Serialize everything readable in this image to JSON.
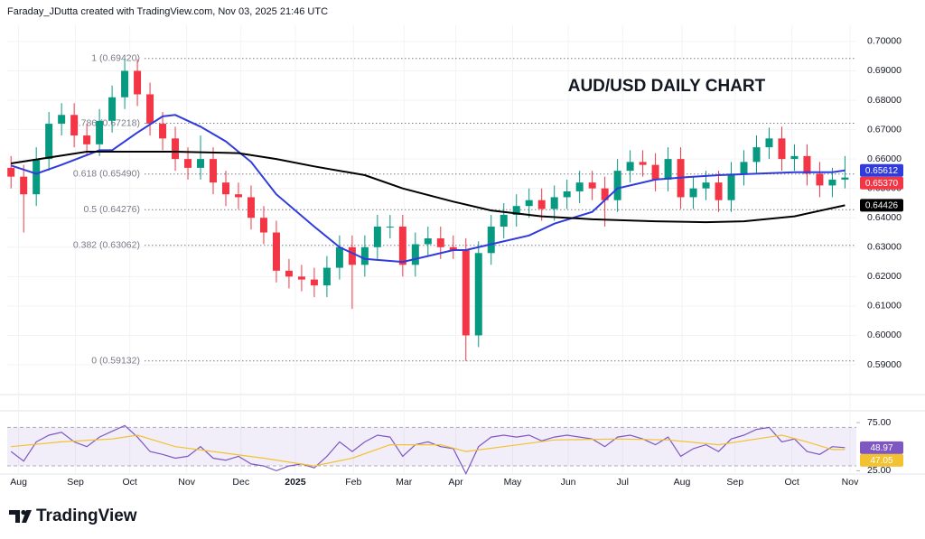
{
  "header": "Faraday_JDutta created with TradingView.com, Nov 03, 2025 21:46 UTC",
  "logo": "TradingView",
  "chart_data": [
    {
      "type": "candlestick",
      "title": "AUD/USD DAILY CHART",
      "x": [
        0,
        1,
        2,
        3,
        4,
        5,
        6,
        7,
        8,
        9,
        10,
        11,
        12,
        13,
        14,
        15,
        16,
        17,
        18,
        19,
        20,
        21,
        22,
        23,
        24,
        25,
        26,
        27,
        28,
        29,
        30,
        31,
        32,
        33,
        34,
        35,
        36,
        37,
        38,
        39,
        40,
        41,
        42,
        43,
        44,
        45,
        46,
        47,
        48,
        49,
        50,
        51,
        52,
        53,
        54,
        55,
        56,
        57,
        58,
        59,
        60,
        61,
        62,
        63,
        64,
        65,
        66
      ],
      "open": [
        0.657,
        0.654,
        0.648,
        0.66,
        0.672,
        0.675,
        0.668,
        0.665,
        0.673,
        0.681,
        0.69,
        0.682,
        0.672,
        0.667,
        0.66,
        0.657,
        0.66,
        0.652,
        0.648,
        0.647,
        0.64,
        0.635,
        0.622,
        0.62,
        0.619,
        0.617,
        0.623,
        0.63,
        0.624,
        0.63,
        0.637,
        0.637,
        0.624,
        0.631,
        0.633,
        0.63,
        0.629,
        0.6,
        0.628,
        0.637,
        0.641,
        0.644,
        0.646,
        0.643,
        0.647,
        0.649,
        0.652,
        0.65,
        0.646,
        0.656,
        0.659,
        0.658,
        0.653,
        0.66,
        0.647,
        0.65,
        0.652,
        0.646,
        0.655,
        0.659,
        0.664,
        0.667,
        0.66,
        0.661,
        0.655,
        0.651,
        0.653
      ],
      "high": [
        0.661,
        0.658,
        0.664,
        0.676,
        0.679,
        0.679,
        0.672,
        0.677,
        0.685,
        0.6942,
        0.694,
        0.686,
        0.676,
        0.671,
        0.664,
        0.668,
        0.664,
        0.656,
        0.652,
        0.651,
        0.644,
        0.639,
        0.626,
        0.624,
        0.623,
        0.627,
        0.634,
        0.634,
        0.634,
        0.641,
        0.641,
        0.641,
        0.635,
        0.637,
        0.637,
        0.634,
        0.633,
        0.632,
        0.641,
        0.645,
        0.648,
        0.65,
        0.65,
        0.651,
        0.653,
        0.656,
        0.656,
        0.654,
        0.66,
        0.663,
        0.663,
        0.662,
        0.664,
        0.664,
        0.654,
        0.656,
        0.656,
        0.659,
        0.663,
        0.668,
        0.6707,
        0.671,
        0.665,
        0.665,
        0.659,
        0.657,
        0.661
      ],
      "low": [
        0.65,
        0.635,
        0.644,
        0.656,
        0.668,
        0.664,
        0.661,
        0.661,
        0.669,
        0.677,
        0.678,
        0.668,
        0.663,
        0.656,
        0.653,
        0.653,
        0.648,
        0.644,
        0.643,
        0.636,
        0.631,
        0.618,
        0.616,
        0.615,
        0.613,
        0.613,
        0.619,
        0.609,
        0.62,
        0.626,
        0.633,
        0.62,
        0.62,
        0.627,
        0.626,
        0.626,
        0.5913,
        0.596,
        0.624,
        0.633,
        0.637,
        0.64,
        0.639,
        0.639,
        0.643,
        0.645,
        0.646,
        0.637,
        0.642,
        0.652,
        0.654,
        0.649,
        0.649,
        0.643,
        0.643,
        0.646,
        0.642,
        0.642,
        0.651,
        0.655,
        0.66,
        0.656,
        0.656,
        0.651,
        0.647,
        0.647,
        0.65
      ],
      "close": [
        0.654,
        0.648,
        0.66,
        0.672,
        0.675,
        0.668,
        0.665,
        0.673,
        0.681,
        0.69,
        0.682,
        0.672,
        0.667,
        0.66,
        0.657,
        0.66,
        0.652,
        0.648,
        0.647,
        0.64,
        0.635,
        0.622,
        0.62,
        0.619,
        0.617,
        0.623,
        0.63,
        0.624,
        0.63,
        0.637,
        0.637,
        0.624,
        0.631,
        0.633,
        0.63,
        0.629,
        0.6,
        0.628,
        0.637,
        0.641,
        0.644,
        0.646,
        0.643,
        0.647,
        0.649,
        0.652,
        0.65,
        0.646,
        0.656,
        0.659,
        0.658,
        0.653,
        0.66,
        0.647,
        0.65,
        0.652,
        0.646,
        0.655,
        0.659,
        0.664,
        0.667,
        0.66,
        0.661,
        0.655,
        0.651,
        0.653,
        0.6537
      ],
      "up_color": "#089981",
      "down_color": "#f23645",
      "series": [
        {
          "color": "#2f3bdd",
          "x": [
            0,
            2,
            4,
            7,
            8,
            10,
            12,
            13,
            15,
            17,
            19,
            21,
            24,
            26,
            28,
            31,
            33,
            35,
            36,
            38,
            41,
            43,
            46,
            48,
            51,
            54,
            56,
            59,
            62,
            65,
            66
          ],
          "values": [
            0.6578,
            0.655,
            0.658,
            0.663,
            0.663,
            0.669,
            0.6745,
            0.675,
            0.671,
            0.666,
            0.659,
            0.648,
            0.637,
            0.63,
            0.626,
            0.625,
            0.627,
            0.629,
            0.629,
            0.631,
            0.634,
            0.638,
            0.642,
            0.65,
            0.653,
            0.654,
            0.6545,
            0.655,
            0.6555,
            0.6555,
            0.65612
          ]
        },
        {
          "color": "#000000",
          "x": [
            0,
            6,
            13,
            18,
            21,
            24,
            28,
            31,
            35,
            38,
            42,
            46,
            51,
            55,
            58,
            62,
            66
          ],
          "values": [
            0.6585,
            0.6625,
            0.6625,
            0.662,
            0.66,
            0.6575,
            0.6545,
            0.65,
            0.6455,
            0.6425,
            0.6405,
            0.6395,
            0.6388,
            0.6385,
            0.6388,
            0.6405,
            0.64426
          ]
        }
      ],
      "last_value_labels": [
        {
          "value": 0.65612,
          "label": "0.65612",
          "color": "#2f3bdd"
        },
        {
          "value": 0.6537,
          "label": "0.65370",
          "color": "#f23645"
        },
        {
          "value": 0.64426,
          "label": "0.64426",
          "color": "#000000"
        }
      ],
      "fib_levels": [
        {
          "value": 0.6942,
          "label": "1 (0.69420)"
        },
        {
          "value": 0.67218,
          "label": "0.786 (0.67218)"
        },
        {
          "value": 0.6549,
          "label": "0.618 (0.65490)"
        },
        {
          "value": 0.64276,
          "label": "0.5 (0.64276)"
        },
        {
          "value": 0.63062,
          "label": "0.382 (0.63062)"
        },
        {
          "value": 0.59132,
          "label": "0 (0.59132)"
        }
      ],
      "xlim": [
        -0.3,
        66.9
      ],
      "xticks": [
        {
          "value": 0.6,
          "label": "Aug"
        },
        {
          "value": 5.1,
          "label": "Sep"
        },
        {
          "value": 9.4,
          "label": "Oct"
        },
        {
          "value": 13.9,
          "label": "Nov"
        },
        {
          "value": 18.2,
          "label": "Dec"
        },
        {
          "value": 22.5,
          "label": "2025"
        },
        {
          "value": 27.1,
          "label": "Feb"
        },
        {
          "value": 31.1,
          "label": "Mar"
        },
        {
          "value": 35.2,
          "label": "Apr"
        },
        {
          "value": 39.7,
          "label": "May"
        },
        {
          "value": 44.1,
          "label": "Jun"
        },
        {
          "value": 48.4,
          "label": "Jul"
        },
        {
          "value": 53.1,
          "label": "Aug"
        },
        {
          "value": 57.3,
          "label": "Sep"
        },
        {
          "value": 61.8,
          "label": "Oct"
        },
        {
          "value": 66.4,
          "label": "Nov"
        }
      ],
      "ylim": [
        0.5814,
        0.7055
      ],
      "yticks": [
        {
          "value": 0.59,
          "label": "0.59000"
        },
        {
          "value": 0.6,
          "label": "0.60000"
        },
        {
          "value": 0.61,
          "label": "0.61000"
        },
        {
          "value": 0.62,
          "label": "0.62000"
        },
        {
          "value": 0.63,
          "label": "0.63000"
        },
        {
          "value": 0.64,
          "label": "0.64000"
        },
        {
          "value": 0.65,
          "label": "0.65000"
        },
        {
          "value": 0.66,
          "label": "0.66000"
        },
        {
          "value": 0.67,
          "label": "0.67000"
        },
        {
          "value": 0.68,
          "label": "0.68000"
        },
        {
          "value": 0.69,
          "label": "0.69000"
        },
        {
          "value": 0.7,
          "label": "0.70000"
        }
      ],
      "grid": true
    },
    {
      "type": "line",
      "series": [
        {
          "color": "#7e57c2",
          "x": [
            0,
            1,
            2,
            3,
            4,
            5,
            6,
            7,
            8,
            9,
            10,
            11,
            12,
            13,
            14,
            15,
            16,
            17,
            18,
            19,
            20,
            21,
            22,
            23,
            24,
            25,
            26,
            27,
            28,
            29,
            30,
            31,
            32,
            33,
            34,
            35,
            36,
            37,
            38,
            39,
            40,
            41,
            42,
            43,
            44,
            45,
            46,
            47,
            48,
            49,
            50,
            51,
            52,
            53,
            54,
            55,
            56,
            57,
            58,
            59,
            60,
            61,
            62,
            63,
            64,
            65,
            66
          ],
          "values": [
            45,
            35,
            55,
            62,
            65,
            55,
            50,
            60,
            66,
            72,
            60,
            45,
            42,
            38,
            40,
            50,
            38,
            36,
            40,
            32,
            30,
            25,
            30,
            32,
            28,
            40,
            55,
            45,
            55,
            62,
            60,
            40,
            52,
            55,
            50,
            48,
            22,
            50,
            60,
            62,
            60,
            62,
            56,
            60,
            62,
            60,
            58,
            50,
            60,
            62,
            58,
            52,
            60,
            40,
            48,
            52,
            45,
            58,
            62,
            68,
            70,
            55,
            58,
            45,
            42,
            50,
            48.97
          ]
        },
        {
          "color": "#f2c230",
          "x": [
            0,
            4,
            8,
            10,
            13,
            16,
            20,
            24,
            27,
            30,
            34,
            36,
            39,
            43,
            48,
            52,
            56,
            59,
            61,
            63,
            65,
            66
          ],
          "values": [
            50,
            55,
            58,
            62,
            50,
            45,
            38,
            30,
            38,
            52,
            52,
            45,
            50,
            57,
            58,
            57,
            52,
            58,
            62,
            55,
            47,
            47.05
          ]
        }
      ],
      "last_value_labels": [
        {
          "value": 48.97,
          "label": "48.97",
          "color": "#7e57c2"
        },
        {
          "value": 47.05,
          "label": "47.05",
          "color": "#f2c230"
        }
      ],
      "band": [
        30,
        70
      ],
      "xlim": [
        -0.3,
        66.9
      ],
      "ylim": [
        21.6,
        87.3
      ],
      "yticks": [
        {
          "value": 75,
          "label": "75.00"
        },
        {
          "value": 25,
          "label": "25.00"
        }
      ]
    }
  ]
}
